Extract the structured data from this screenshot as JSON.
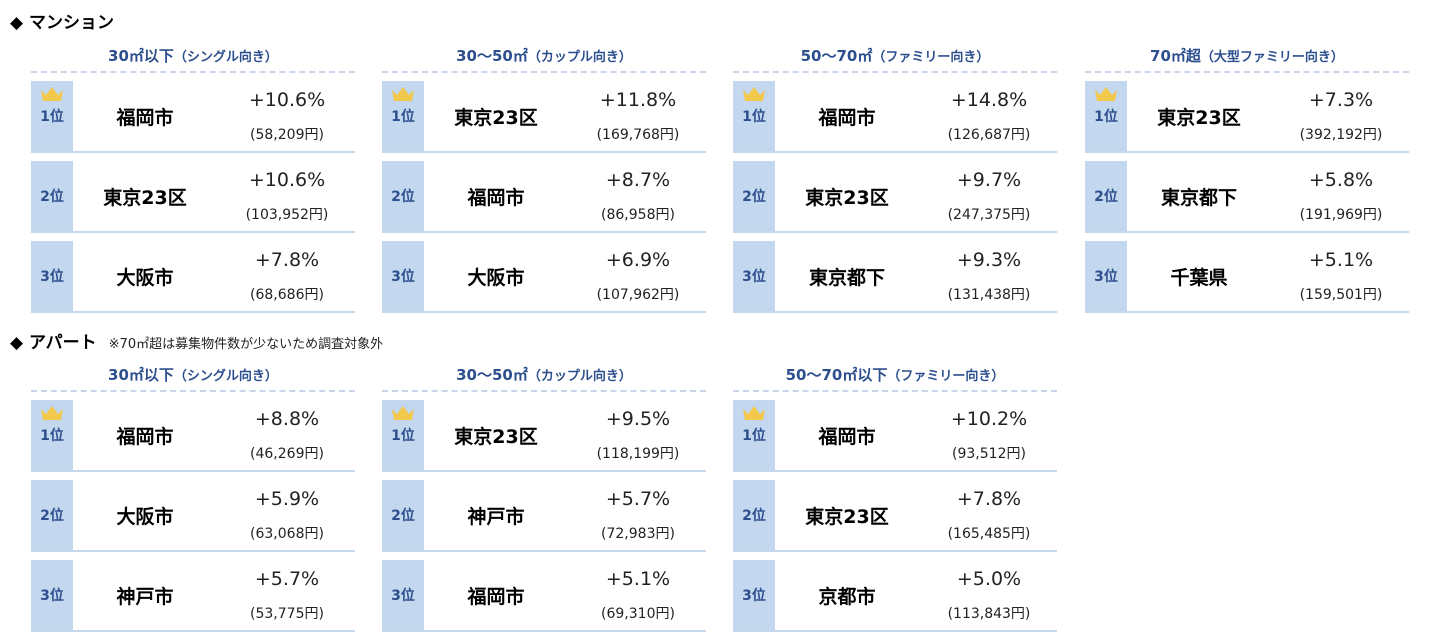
{
  "mansion": {
    "title": "◆ マンション",
    "groups": [
      {
        "heading": "30㎡以下",
        "sub": "（シングル向き）",
        "rows": [
          {
            "rank": "1位",
            "city": "福岡市",
            "pct": "+10.6%",
            "price": "(58,209円)"
          },
          {
            "rank": "2位",
            "city": "東京23区",
            "pct": "+10.6%",
            "price": "(103,952円)"
          },
          {
            "rank": "3位",
            "city": "大阪市",
            "pct": "+7.8%",
            "price": "(68,686円)"
          }
        ]
      },
      {
        "heading": "30～50㎡",
        "sub": "（カップル向き）",
        "rows": [
          {
            "rank": "1位",
            "city": "東京23区",
            "pct": "+11.8%",
            "price": "(169,768円)"
          },
          {
            "rank": "2位",
            "city": "福岡市",
            "pct": "+8.7%",
            "price": "(86,958円)"
          },
          {
            "rank": "3位",
            "city": "大阪市",
            "pct": "+6.9%",
            "price": "(107,962円)"
          }
        ]
      },
      {
        "heading": "50～70㎡",
        "sub": "（ファミリー向き）",
        "rows": [
          {
            "rank": "1位",
            "city": "福岡市",
            "pct": "+14.8%",
            "price": "(126,687円)"
          },
          {
            "rank": "2位",
            "city": "東京23区",
            "pct": "+9.7%",
            "price": "(247,375円)"
          },
          {
            "rank": "3位",
            "city": "東京都下",
            "pct": "+9.3%",
            "price": "(131,438円)"
          }
        ]
      },
      {
        "heading": "70㎡超",
        "sub": "（大型ファミリー向き）",
        "rows": [
          {
            "rank": "1位",
            "city": "東京23区",
            "pct": "+7.3%",
            "price": "(392,192円)"
          },
          {
            "rank": "2位",
            "city": "東京都下",
            "pct": "+5.8%",
            "price": "(191,969円)"
          },
          {
            "rank": "3位",
            "city": "千葉県",
            "pct": "+5.1%",
            "price": "(159,501円)"
          }
        ]
      }
    ]
  },
  "apart": {
    "title": "◆ アパート",
    "note": "※70㎡超は募集物件数が少ないため調査対象外",
    "groups": [
      {
        "heading": "30㎡以下",
        "sub": "（シングル向き）",
        "rows": [
          {
            "rank": "1位",
            "city": "福岡市",
            "pct": "+8.8%",
            "price": "(46,269円)"
          },
          {
            "rank": "2位",
            "city": "大阪市",
            "pct": "+5.9%",
            "price": "(63,068円)"
          },
          {
            "rank": "3位",
            "city": "神戸市",
            "pct": "+5.7%",
            "price": "(53,775円)"
          }
        ]
      },
      {
        "heading": "30～50㎡",
        "sub": "（カップル向き）",
        "rows": [
          {
            "rank": "1位",
            "city": "東京23区",
            "pct": "+9.5%",
            "price": "(118,199円)"
          },
          {
            "rank": "2位",
            "city": "神戸市",
            "pct": "+5.7%",
            "price": "(72,983円)"
          },
          {
            "rank": "3位",
            "city": "福岡市",
            "pct": "+5.1%",
            "price": "(69,310円)"
          }
        ]
      },
      {
        "heading": "50～70㎡以下",
        "sub": "（ファミリー向き）",
        "rows": [
          {
            "rank": "1位",
            "city": "福岡市",
            "pct": "+10.2%",
            "price": "(93,512円)"
          },
          {
            "rank": "2位",
            "city": "東京23区",
            "pct": "+7.8%",
            "price": "(165,485円)"
          },
          {
            "rank": "3位",
            "city": "京都市",
            "pct": "+5.0%",
            "price": "(113,843円)"
          }
        ]
      }
    ]
  },
  "colors": {
    "rank_bg": "#c3d7ee",
    "heading_text": "#2d4f8e",
    "crown": "#f2c94c"
  },
  "icons": {
    "first_place": "crown-icon"
  }
}
